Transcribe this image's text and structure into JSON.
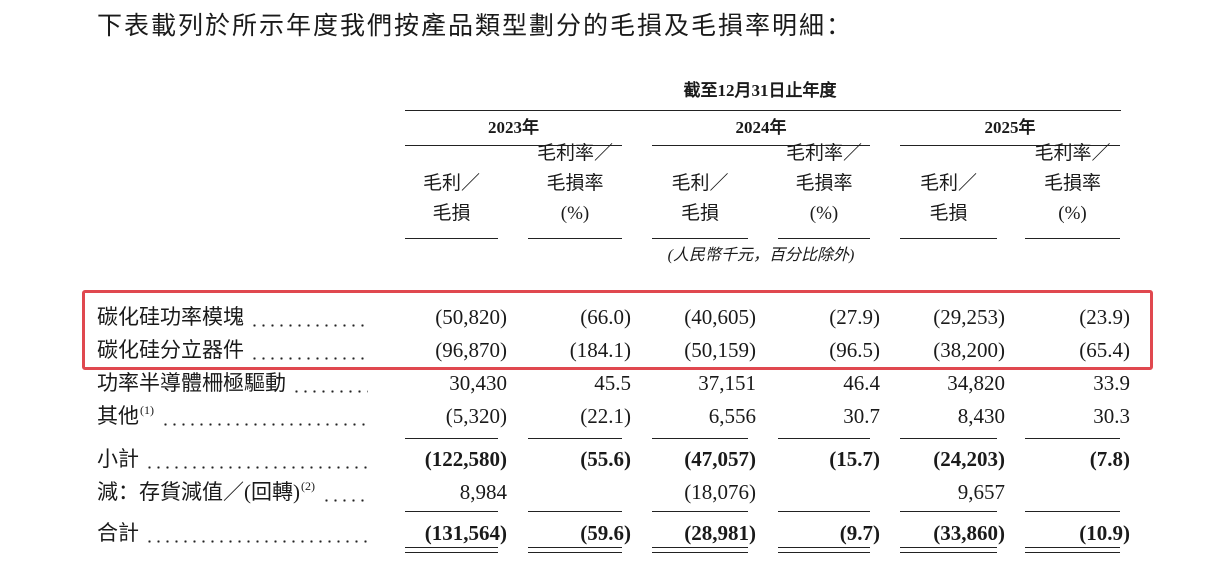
{
  "intro": "下表載列於所示年度我們按產品類型劃分的毛損及毛損率明細：",
  "table": {
    "period_header": "截至12月31日止年度",
    "years": [
      "2023年",
      "2024年",
      "2025年"
    ],
    "column_headers": [
      [
        "毛利／",
        "毛損"
      ],
      [
        "毛利率／",
        "毛損率",
        "(%)"
      ]
    ],
    "unit_note": "(人民幣千元，百分比除外)",
    "rows": [
      {
        "label": "碳化硅功率模塊",
        "cells": [
          "(50,820)",
          "(66.0)",
          "(40,605)",
          "(27.9)",
          "(29,253)",
          "(23.9)"
        ]
      },
      {
        "label": "碳化硅分立器件",
        "cells": [
          "(96,870)",
          "(184.1)",
          "(50,159)",
          "(96.5)",
          "(38,200)",
          "(65.4)"
        ]
      },
      {
        "label": "功率半導體柵極驅動",
        "cells": [
          "30,430",
          "45.5",
          "37,151",
          "46.4",
          "34,820",
          "33.9"
        ]
      },
      {
        "label": "其他",
        "note": "(1)",
        "cells": [
          "(5,320)",
          "(22.1)",
          "6,556",
          "30.7",
          "8,430",
          "30.3"
        ]
      },
      {
        "label": "小計",
        "bold": true,
        "cells": [
          "(122,580)",
          "(55.6)",
          "(47,057)",
          "(15.7)",
          "(24,203)",
          "(7.8)"
        ]
      },
      {
        "label": "減：存貨減值／(回轉)",
        "note": "(2)",
        "cells": [
          "8,984",
          null,
          "(18,076)",
          null,
          "9,657",
          null
        ]
      },
      {
        "label": "合計",
        "bold": true,
        "cells": [
          "(131,564)",
          "(59.6)",
          "(28,981)",
          "(9.7)",
          "(33,860)",
          "(10.9)"
        ]
      }
    ]
  }
}
